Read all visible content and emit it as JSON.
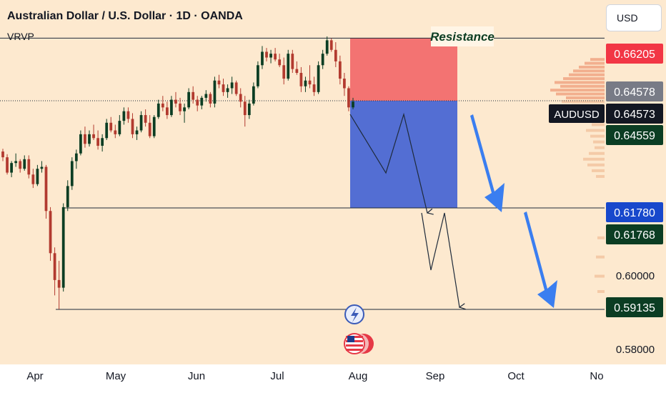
{
  "header": {
    "title": "Australian Dollar / U.S. Dollar · 1D · OANDA",
    "indicator": "VRVP"
  },
  "price_scale": {
    "currency_label": "USD",
    "ticks": [
      "0.60000",
      "0.58000"
    ],
    "badges": [
      {
        "label": "0.66205",
        "bg": "#f23645",
        "fg": "#ffffff"
      },
      {
        "label": "0.64578",
        "bg": "#787b86",
        "fg": "#ffffff"
      },
      {
        "label": "0.64573",
        "bg": "#131722",
        "fg": "#ffffff"
      },
      {
        "label": "0.64559",
        "bg": "#0b3d23",
        "fg": "#ffffff"
      },
      {
        "label": "0.61780",
        "bg": "#1848cc",
        "fg": "#ffffff"
      },
      {
        "label": "0.61768",
        "bg": "#0b3d23",
        "fg": "#ffffff"
      },
      {
        "label": "0.59135",
        "bg": "#0b3d23",
        "fg": "#ffffff"
      }
    ],
    "symbol_badge": "AUDUSD"
  },
  "annotations": {
    "resistance_label": "Resistance",
    "event_icons": [
      "lightning-icon",
      "us-flag-icon"
    ]
  },
  "colors": {
    "background": "#fde9cf",
    "up_candle": "#0b3d23",
    "down_candle": "#b23a2f",
    "stop_zone": "#f26d6d",
    "target_zone": "#4a67d3",
    "arrow": "#3a7ef0"
  },
  "chart_data": {
    "type": "candlestick",
    "symbol": "AUDUSD",
    "interval": "1D",
    "x_axis": {
      "ticks": [
        "Apr",
        "May",
        "Jun",
        "Jul",
        "Aug",
        "Sep",
        "Oct",
        "No"
      ]
    },
    "y_range": [
      0.577,
      0.672
    ],
    "levels": [
      {
        "price": 0.66205,
        "style": "solid"
      },
      {
        "price": 0.64573,
        "style": "dotted"
      },
      {
        "price": 0.6178,
        "style": "solid"
      },
      {
        "price": 0.59135,
        "style": "solid"
      }
    ],
    "position": {
      "type": "short",
      "entry": 0.64573,
      "stop": 0.66205,
      "target": 0.6178
    },
    "candles": [
      {
        "o": 0.6325,
        "h": 0.6332,
        "l": 0.63,
        "c": 0.631
      },
      {
        "o": 0.631,
        "h": 0.6318,
        "l": 0.6265,
        "c": 0.627
      },
      {
        "o": 0.627,
        "h": 0.63,
        "l": 0.6258,
        "c": 0.6295
      },
      {
        "o": 0.6295,
        "h": 0.632,
        "l": 0.6285,
        "c": 0.63
      },
      {
        "o": 0.63,
        "h": 0.6305,
        "l": 0.627,
        "c": 0.628
      },
      {
        "o": 0.628,
        "h": 0.6315,
        "l": 0.6275,
        "c": 0.6305
      },
      {
        "o": 0.6305,
        "h": 0.6315,
        "l": 0.6255,
        "c": 0.6265
      },
      {
        "o": 0.6265,
        "h": 0.628,
        "l": 0.623,
        "c": 0.624
      },
      {
        "o": 0.624,
        "h": 0.629,
        "l": 0.6235,
        "c": 0.628
      },
      {
        "o": 0.628,
        "h": 0.63,
        "l": 0.627,
        "c": 0.6285
      },
      {
        "o": 0.6285,
        "h": 0.629,
        "l": 0.615,
        "c": 0.617
      },
      {
        "o": 0.617,
        "h": 0.618,
        "l": 0.604,
        "c": 0.606
      },
      {
        "o": 0.606,
        "h": 0.6075,
        "l": 0.595,
        "c": 0.599
      },
      {
        "o": 0.599,
        "h": 0.604,
        "l": 0.5914,
        "c": 0.597
      },
      {
        "o": 0.597,
        "h": 0.619,
        "l": 0.596,
        "c": 0.618
      },
      {
        "o": 0.618,
        "h": 0.625,
        "l": 0.617,
        "c": 0.6235
      },
      {
        "o": 0.6235,
        "h": 0.631,
        "l": 0.6225,
        "c": 0.63
      },
      {
        "o": 0.63,
        "h": 0.633,
        "l": 0.628,
        "c": 0.632
      },
      {
        "o": 0.632,
        "h": 0.638,
        "l": 0.6315,
        "c": 0.637
      },
      {
        "o": 0.637,
        "h": 0.639,
        "l": 0.6335,
        "c": 0.6345
      },
      {
        "o": 0.6345,
        "h": 0.638,
        "l": 0.6338,
        "c": 0.637
      },
      {
        "o": 0.637,
        "h": 0.6395,
        "l": 0.6355,
        "c": 0.636
      },
      {
        "o": 0.636,
        "h": 0.638,
        "l": 0.633,
        "c": 0.634
      },
      {
        "o": 0.634,
        "h": 0.637,
        "l": 0.6325,
        "c": 0.636
      },
      {
        "o": 0.636,
        "h": 0.641,
        "l": 0.6355,
        "c": 0.64
      },
      {
        "o": 0.64,
        "h": 0.6415,
        "l": 0.6375,
        "c": 0.638
      },
      {
        "o": 0.638,
        "h": 0.6395,
        "l": 0.636,
        "c": 0.637
      },
      {
        "o": 0.637,
        "h": 0.642,
        "l": 0.6365,
        "c": 0.6405
      },
      {
        "o": 0.6405,
        "h": 0.644,
        "l": 0.6395,
        "c": 0.643
      },
      {
        "o": 0.643,
        "h": 0.644,
        "l": 0.64,
        "c": 0.641
      },
      {
        "o": 0.641,
        "h": 0.6425,
        "l": 0.636,
        "c": 0.637
      },
      {
        "o": 0.637,
        "h": 0.639,
        "l": 0.6355,
        "c": 0.638
      },
      {
        "o": 0.638,
        "h": 0.643,
        "l": 0.6375,
        "c": 0.642
      },
      {
        "o": 0.642,
        "h": 0.6435,
        "l": 0.639,
        "c": 0.64
      },
      {
        "o": 0.64,
        "h": 0.642,
        "l": 0.636,
        "c": 0.6365
      },
      {
        "o": 0.6365,
        "h": 0.642,
        "l": 0.636,
        "c": 0.6415
      },
      {
        "o": 0.6415,
        "h": 0.646,
        "l": 0.641,
        "c": 0.645
      },
      {
        "o": 0.645,
        "h": 0.647,
        "l": 0.643,
        "c": 0.644
      },
      {
        "o": 0.644,
        "h": 0.6455,
        "l": 0.641,
        "c": 0.642
      },
      {
        "o": 0.642,
        "h": 0.647,
        "l": 0.6415,
        "c": 0.646
      },
      {
        "o": 0.646,
        "h": 0.648,
        "l": 0.644,
        "c": 0.645
      },
      {
        "o": 0.645,
        "h": 0.6465,
        "l": 0.642,
        "c": 0.643
      },
      {
        "o": 0.643,
        "h": 0.645,
        "l": 0.64,
        "c": 0.644
      },
      {
        "o": 0.644,
        "h": 0.649,
        "l": 0.6435,
        "c": 0.648
      },
      {
        "o": 0.648,
        "h": 0.6495,
        "l": 0.645,
        "c": 0.646
      },
      {
        "o": 0.646,
        "h": 0.647,
        "l": 0.643,
        "c": 0.6445
      },
      {
        "o": 0.6445,
        "h": 0.647,
        "l": 0.6435,
        "c": 0.6465
      },
      {
        "o": 0.6465,
        "h": 0.6485,
        "l": 0.6455,
        "c": 0.6475
      },
      {
        "o": 0.6475,
        "h": 0.648,
        "l": 0.644,
        "c": 0.645
      },
      {
        "o": 0.645,
        "h": 0.652,
        "l": 0.644,
        "c": 0.651
      },
      {
        "o": 0.651,
        "h": 0.6525,
        "l": 0.649,
        "c": 0.65
      },
      {
        "o": 0.65,
        "h": 0.6515,
        "l": 0.647,
        "c": 0.648
      },
      {
        "o": 0.648,
        "h": 0.65,
        "l": 0.6465,
        "c": 0.649
      },
      {
        "o": 0.649,
        "h": 0.652,
        "l": 0.6475,
        "c": 0.6505
      },
      {
        "o": 0.6505,
        "h": 0.651,
        "l": 0.647,
        "c": 0.6475
      },
      {
        "o": 0.6475,
        "h": 0.649,
        "l": 0.644,
        "c": 0.6455
      },
      {
        "o": 0.6455,
        "h": 0.647,
        "l": 0.639,
        "c": 0.642
      },
      {
        "o": 0.642,
        "h": 0.646,
        "l": 0.641,
        "c": 0.645
      },
      {
        "o": 0.645,
        "h": 0.6505,
        "l": 0.6445,
        "c": 0.6495
      },
      {
        "o": 0.6495,
        "h": 0.656,
        "l": 0.649,
        "c": 0.655
      },
      {
        "o": 0.655,
        "h": 0.66,
        "l": 0.654,
        "c": 0.6585
      },
      {
        "o": 0.6585,
        "h": 0.6595,
        "l": 0.656,
        "c": 0.657
      },
      {
        "o": 0.657,
        "h": 0.659,
        "l": 0.6555,
        "c": 0.658
      },
      {
        "o": 0.658,
        "h": 0.6595,
        "l": 0.656,
        "c": 0.6565
      },
      {
        "o": 0.6565,
        "h": 0.658,
        "l": 0.6545,
        "c": 0.655
      },
      {
        "o": 0.655,
        "h": 0.657,
        "l": 0.65,
        "c": 0.6515
      },
      {
        "o": 0.6515,
        "h": 0.659,
        "l": 0.651,
        "c": 0.658
      },
      {
        "o": 0.658,
        "h": 0.659,
        "l": 0.653,
        "c": 0.654
      },
      {
        "o": 0.654,
        "h": 0.656,
        "l": 0.6525,
        "c": 0.653
      },
      {
        "o": 0.653,
        "h": 0.6545,
        "l": 0.648,
        "c": 0.6495
      },
      {
        "o": 0.6495,
        "h": 0.652,
        "l": 0.648,
        "c": 0.651
      },
      {
        "o": 0.651,
        "h": 0.655,
        "l": 0.649,
        "c": 0.65
      },
      {
        "o": 0.65,
        "h": 0.652,
        "l": 0.647,
        "c": 0.648
      },
      {
        "o": 0.648,
        "h": 0.656,
        "l": 0.6475,
        "c": 0.655
      },
      {
        "o": 0.655,
        "h": 0.659,
        "l": 0.654,
        "c": 0.658
      },
      {
        "o": 0.658,
        "h": 0.6625,
        "l": 0.6575,
        "c": 0.6615
      },
      {
        "o": 0.6615,
        "h": 0.662,
        "l": 0.6585,
        "c": 0.659
      },
      {
        "o": 0.659,
        "h": 0.661,
        "l": 0.6545,
        "c": 0.656
      },
      {
        "o": 0.656,
        "h": 0.6575,
        "l": 0.65,
        "c": 0.6515
      },
      {
        "o": 0.6515,
        "h": 0.653,
        "l": 0.647,
        "c": 0.649
      },
      {
        "o": 0.649,
        "h": 0.6495,
        "l": 0.643,
        "c": 0.644
      },
      {
        "o": 0.644,
        "h": 0.6465,
        "l": 0.6435,
        "c": 0.6455
      }
    ]
  }
}
